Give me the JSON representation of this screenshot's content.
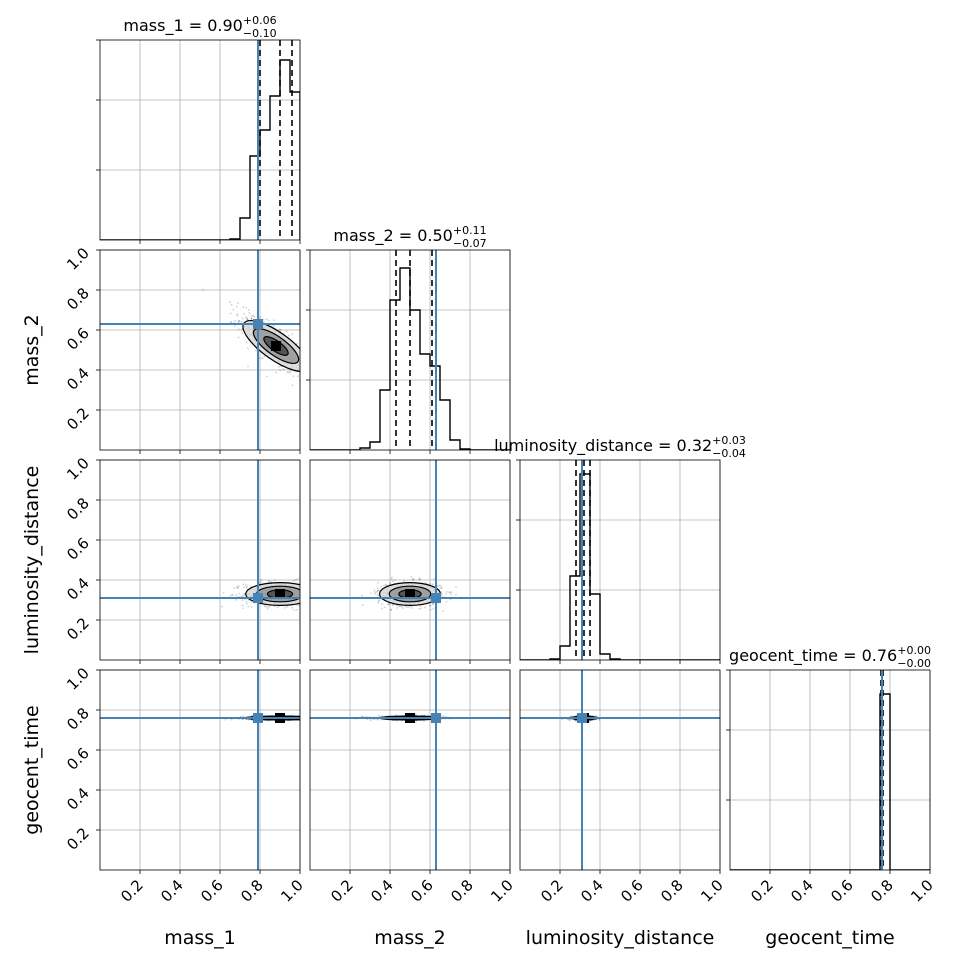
{
  "colors": {
    "truth": "#4682b4",
    "histogram": "#000000",
    "density": "#000000",
    "grid": "#b0b0b0"
  },
  "chart_data": {
    "type": "corner",
    "grid": true,
    "parameters": [
      {
        "name": "mass_1",
        "label": "mass_1",
        "title_value": "0.90",
        "title_plus": "+0.06",
        "title_minus": "−0.10",
        "truth": 0.79,
        "median": 0.9,
        "quantiles": [
          0.8,
          0.9,
          0.96
        ],
        "range": [
          0,
          1
        ]
      },
      {
        "name": "mass_2",
        "label": "mass_2",
        "title_value": "0.50",
        "title_plus": "+0.11",
        "title_minus": "−0.07",
        "truth": 0.63,
        "median": 0.5,
        "quantiles": [
          0.43,
          0.5,
          0.61
        ],
        "range": [
          0,
          1
        ]
      },
      {
        "name": "luminosity_distance",
        "label": "luminosity_distance",
        "title_value": "0.32",
        "title_plus": "+0.03",
        "title_minus": "−0.04",
        "truth": 0.31,
        "median": 0.32,
        "quantiles": [
          0.28,
          0.32,
          0.35
        ],
        "range": [
          0,
          1
        ]
      },
      {
        "name": "geocent_time",
        "label": "geocent_time",
        "title_value": "0.76",
        "title_plus": "+0.00",
        "title_minus": "−0.00",
        "truth": 0.76,
        "median": 0.76,
        "quantiles": [
          0.755,
          0.76,
          0.765
        ],
        "range": [
          0,
          1
        ]
      }
    ],
    "tick_values": [
      0.2,
      0.4,
      0.6,
      0.8,
      1.0
    ],
    "tick_labels": [
      "0.2",
      "0.4",
      "0.6",
      "0.8",
      "1.0"
    ],
    "histograms": [
      {
        "param": "mass_1",
        "bin_width": 0.05,
        "bins": [
          0.65,
          0.7,
          0.75,
          0.8,
          0.85,
          0.9,
          0.95
        ],
        "heights": [
          0.005,
          0.11,
          0.42,
          0.55,
          0.72,
          0.9,
          0.74
        ]
      },
      {
        "param": "mass_2",
        "bin_width": 0.05,
        "bins": [
          0.25,
          0.3,
          0.35,
          0.4,
          0.45,
          0.5,
          0.55,
          0.6,
          0.65,
          0.7,
          0.75
        ],
        "heights": [
          0.01,
          0.04,
          0.3,
          0.75,
          0.91,
          0.7,
          0.48,
          0.42,
          0.25,
          0.05,
          0.005
        ]
      },
      {
        "param": "luminosity_distance",
        "bin_width": 0.05,
        "bins": [
          0.15,
          0.2,
          0.25,
          0.3,
          0.35,
          0.4,
          0.45
        ],
        "heights": [
          0.005,
          0.07,
          0.42,
          0.93,
          0.33,
          0.03,
          0.005
        ]
      },
      {
        "param": "geocent_time",
        "bin_width": 0.05,
        "bins": [
          0.7,
          0.75,
          0.8
        ],
        "heights": [
          0.0,
          0.88,
          0.0
        ]
      }
    ],
    "pairs": [
      {
        "x": "mass_1",
        "y": "mass_2",
        "center": [
          0.88,
          0.52
        ],
        "spread": [
          0.09,
          0.08
        ],
        "rho": -0.8
      },
      {
        "x": "mass_1",
        "y": "luminosity_distance",
        "center": [
          0.9,
          0.33
        ],
        "spread": [
          0.09,
          0.03
        ],
        "rho": 0.0
      },
      {
        "x": "mass_2",
        "y": "luminosity_distance",
        "center": [
          0.5,
          0.33
        ],
        "spread": [
          0.08,
          0.03
        ],
        "rho": 0.0
      },
      {
        "x": "mass_1",
        "y": "geocent_time",
        "center": [
          0.9,
          0.76
        ],
        "spread": [
          0.09,
          0.005
        ],
        "rho": 0.0
      },
      {
        "x": "mass_2",
        "y": "geocent_time",
        "center": [
          0.5,
          0.76
        ],
        "spread": [
          0.08,
          0.005
        ],
        "rho": 0.0
      },
      {
        "x": "luminosity_distance",
        "y": "geocent_time",
        "center": [
          0.32,
          0.76
        ],
        "spread": [
          0.03,
          0.005
        ],
        "rho": 0.0
      }
    ]
  }
}
